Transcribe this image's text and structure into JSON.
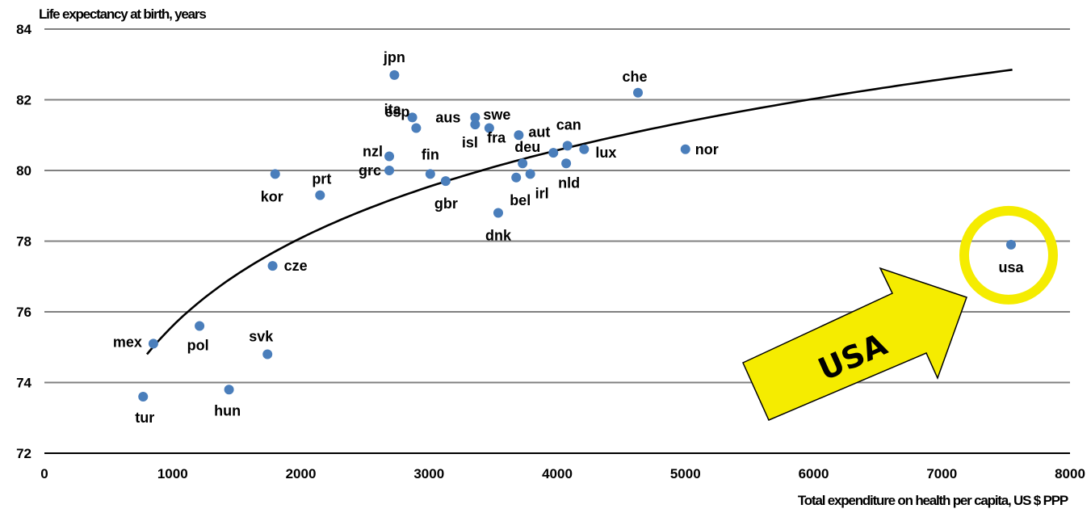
{
  "chart_data": {
    "type": "scatter",
    "ylabel": "Life expectancy at birth, years",
    "xlabel": "Total expenditure on health per capita, US $ PPP",
    "xlim": [
      0,
      8000
    ],
    "ylim": [
      72,
      84
    ],
    "x_ticks": [
      "0",
      "1000",
      "2000",
      "3000",
      "4000",
      "5000",
      "6000",
      "7000",
      "8000"
    ],
    "y_ticks": [
      "72",
      "74",
      "76",
      "78",
      "80",
      "82",
      "84"
    ],
    "grid": "horizontal",
    "point_color": "#4a7ebb",
    "trendline": {
      "type": "logarithmic",
      "x_start": 800,
      "x_end": 7550,
      "y_start": 74.8,
      "y_end": 82.85
    },
    "points": [
      {
        "label": "jpn",
        "x": 2730,
        "y": 82.7
      },
      {
        "label": "che",
        "x": 4630,
        "y": 82.2
      },
      {
        "label": "ita",
        "x": 2870,
        "y": 81.5
      },
      {
        "label": "aus",
        "x": 3360,
        "y": 81.5
      },
      {
        "label": "swe",
        "x": 3360,
        "y": 81.3
      },
      {
        "label": "esp",
        "x": 2900,
        "y": 81.2
      },
      {
        "label": "isl",
        "x": 3470,
        "y": 81.2
      },
      {
        "label": "aut",
        "x": 3700,
        "y": 81.0
      },
      {
        "label": "fra",
        "x": 3730,
        "y": 80.2
      },
      {
        "label": "can",
        "x": 4080,
        "y": 80.7
      },
      {
        "label": "deu",
        "x": 3970,
        "y": 80.5
      },
      {
        "label": "lux",
        "x": 4210,
        "y": 80.6
      },
      {
        "label": "nor",
        "x": 5000,
        "y": 80.6
      },
      {
        "label": "nzl",
        "x": 2690,
        "y": 80.4
      },
      {
        "label": "grc",
        "x": 2690,
        "y": 80.0
      },
      {
        "label": "fin",
        "x": 3010,
        "y": 79.9
      },
      {
        "label": "kor",
        "x": 1800,
        "y": 79.9
      },
      {
        "label": "nld",
        "x": 4070,
        "y": 80.2
      },
      {
        "label": "bel",
        "x": 3680,
        "y": 79.8
      },
      {
        "label": "irl",
        "x": 3790,
        "y": 79.9
      },
      {
        "label": "gbr",
        "x": 3130,
        "y": 79.7
      },
      {
        "label": "prt",
        "x": 2150,
        "y": 79.3
      },
      {
        "label": "dnk",
        "x": 3540,
        "y": 78.8
      },
      {
        "label": "usa",
        "x": 7540,
        "y": 77.9
      },
      {
        "label": "cze",
        "x": 1780,
        "y": 77.3
      },
      {
        "label": "pol",
        "x": 1210,
        "y": 75.6
      },
      {
        "label": "mex",
        "x": 850,
        "y": 75.1
      },
      {
        "label": "svk",
        "x": 1740,
        "y": 74.8
      },
      {
        "label": "hun",
        "x": 1440,
        "y": 73.8
      },
      {
        "label": "tur",
        "x": 770,
        "y": 73.6
      }
    ]
  },
  "annotation": {
    "arrow_text": "USA",
    "arrow_color": "#f5ec00",
    "highlight_color": "#f5ec00",
    "highlight_target": "usa"
  }
}
